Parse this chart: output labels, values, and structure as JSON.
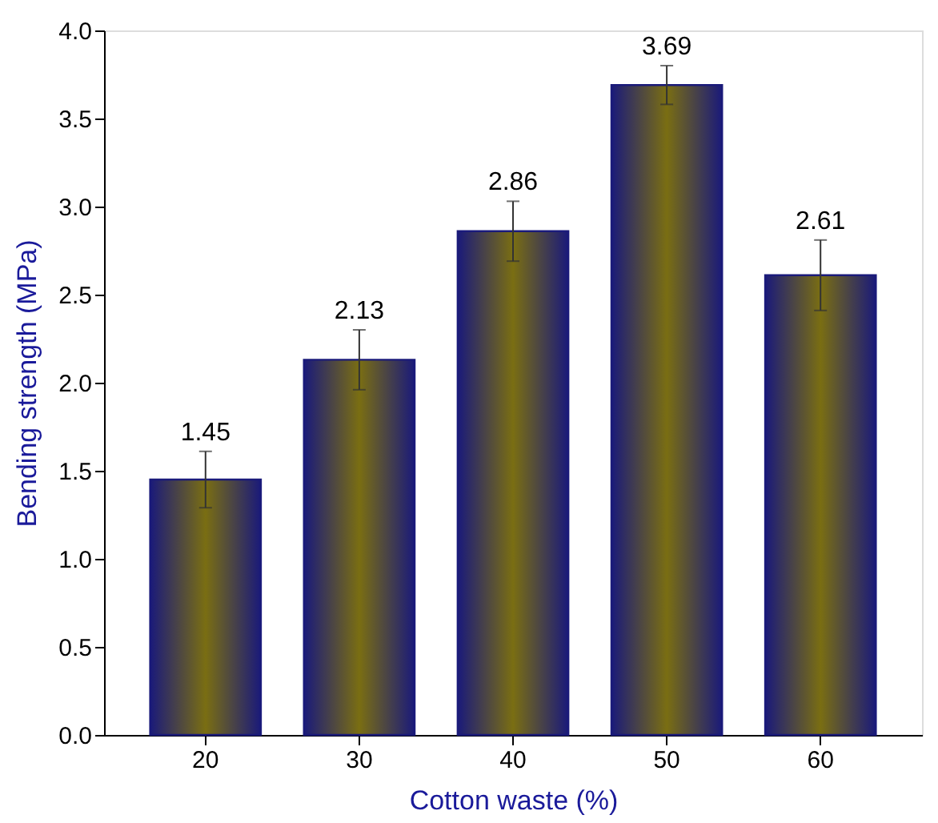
{
  "chart_data": {
    "type": "bar",
    "xlabel": "Cotton waste (%)",
    "ylabel": "Bending strength (MPa)",
    "categories": [
      "20",
      "30",
      "40",
      "50",
      "60"
    ],
    "series": [
      {
        "color": "#1a1a7a",
        "values": [
          1.45,
          2.13,
          2.86,
          3.69,
          2.61
        ],
        "errors": [
          0.16,
          0.17,
          0.17,
          0.11,
          0.2
        ]
      }
    ],
    "ylim": [
      0,
      4.0
    ],
    "yticks": [
      {
        "value": 0,
        "label": "0.0"
      },
      {
        "value": 0.5,
        "label": "0.5"
      },
      {
        "value": 1,
        "label": "1.0"
      },
      {
        "value": 1.5,
        "label": "1.5"
      },
      {
        "value": 2,
        "label": "2.0"
      },
      {
        "value": 2.5,
        "label": "2.5"
      },
      {
        "value": 3,
        "label": "3.0"
      },
      {
        "value": 3.5,
        "label": "3.5"
      },
      {
        "value": 4,
        "label": "4.0"
      }
    ],
    "data_labels": true,
    "grid": false
  }
}
